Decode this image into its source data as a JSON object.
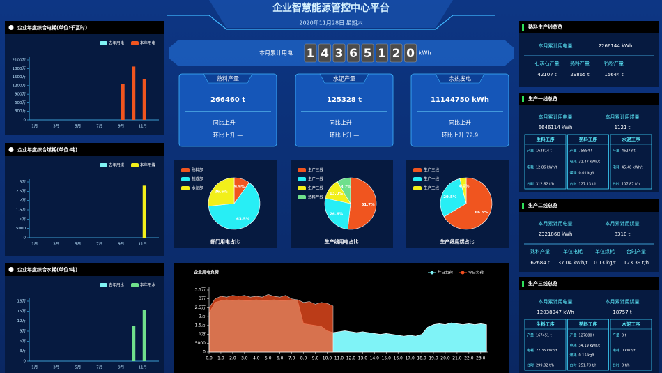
{
  "header": {
    "title": "企业智慧能源管控中心平台",
    "date": "2020年11月28日 星期六"
  },
  "meter": {
    "label": "本月累计用电",
    "digits": [
      "1",
      "4",
      "3",
      "6",
      "5",
      "1",
      "2",
      "0"
    ],
    "unit": "kWh"
  },
  "cards": [
    {
      "title": "熟料产量",
      "value": "266460 t",
      "yoy": "同比上升 —",
      "mom": "环比上升 —"
    },
    {
      "title": "水泥产量",
      "value": "125328 t",
      "yoy": "同比上升 —",
      "mom": "环比上升 —"
    },
    {
      "title": "余热发电",
      "value": "11144750 kWh",
      "yoy": "同比上升",
      "mom": "环比上升 72.9"
    }
  ],
  "chart_data": [
    {
      "type": "bar",
      "title": "企业年度综合电耗(单位:千瓦时)",
      "categories": [
        "1月",
        null,
        "3月",
        null,
        "5月",
        null,
        "7月",
        null,
        "9月",
        null,
        "11月",
        null
      ],
      "series": [
        {
          "name": "去年用电",
          "color": "#7ff3f5",
          "values": [
            null,
            null,
            null,
            null,
            null,
            null,
            null,
            null,
            null,
            null,
            null,
            null
          ]
        },
        {
          "name": "本年用电",
          "color": "#f0551f",
          "values": [
            null,
            null,
            null,
            null,
            null,
            null,
            null,
            null,
            1250,
            1870,
            1420,
            null
          ]
        }
      ],
      "ylim": [
        0,
        2100
      ],
      "yticks": [
        0,
        {
          "value": 300,
          "label": "300万"
        },
        {
          "value": 600,
          "label": "600万"
        },
        {
          "value": 900,
          "label": "900万"
        },
        {
          "value": 1200,
          "label": "1200万"
        },
        {
          "value": 1500,
          "label": "1500万"
        },
        {
          "value": 1800,
          "label": "1800万"
        },
        {
          "value": 2100,
          "label": "2100万"
        }
      ]
    },
    {
      "type": "bar",
      "title": "企业年度综合煤耗(单位:吨)",
      "categories": [
        "1月",
        null,
        "3月",
        null,
        "5月",
        null,
        "7月",
        null,
        "9月",
        null,
        "11月",
        null
      ],
      "series": [
        {
          "name": "去年用煤",
          "color": "#7ff3f5",
          "values": [
            null,
            null,
            null,
            null,
            null,
            null,
            null,
            null,
            null,
            null,
            null,
            null
          ]
        },
        {
          "name": "本年用煤",
          "color": "#f2ef1a",
          "values": [
            null,
            null,
            null,
            null,
            null,
            null,
            null,
            null,
            null,
            null,
            28000,
            null
          ]
        }
      ],
      "ylim": [
        0,
        30000
      ],
      "yticks": [
        0,
        5000,
        {
          "value": 10000,
          "label": "1万"
        },
        {
          "value": 15000,
          "label": "1.5万"
        },
        {
          "value": 20000,
          "label": "2万"
        },
        {
          "value": 25000,
          "label": "2.5万"
        },
        {
          "value": 30000,
          "label": "3万"
        }
      ]
    },
    {
      "type": "bar",
      "title": "企业年度综合水耗(单位:吨)",
      "categories": [
        "1月",
        null,
        "3月",
        null,
        "5月",
        null,
        "7月",
        null,
        "9月",
        null,
        "11月",
        null
      ],
      "series": [
        {
          "name": "去年用水",
          "color": "#7ff3f5",
          "values": [
            null,
            null,
            null,
            null,
            null,
            null,
            null,
            null,
            null,
            null,
            null,
            null
          ]
        },
        {
          "name": "本年用水",
          "color": "#6fe08c",
          "values": [
            null,
            null,
            null,
            null,
            null,
            null,
            null,
            null,
            null,
            10.5,
            15.3,
            null
          ]
        }
      ],
      "ylim": [
        0,
        18
      ],
      "yticks": [
        0,
        {
          "value": 3,
          "label": "3万"
        },
        {
          "value": 6,
          "label": "6万"
        },
        {
          "value": 9,
          "label": "9万"
        },
        {
          "value": 12,
          "label": "12万"
        },
        {
          "value": 15,
          "label": "15万"
        },
        {
          "value": 18,
          "label": "18万"
        }
      ]
    },
    {
      "type": "pie",
      "title": "部门用电占比",
      "categories": [
        "熟料部",
        "制成部",
        "水泥部"
      ],
      "values": [
        9.9,
        63.5,
        26.6
      ],
      "value_labels": [
        "9.9%",
        "63.5%",
        "26.6%"
      ],
      "colors": [
        "#f0551f",
        "#28eef5",
        "#f2ef1a"
      ]
    },
    {
      "type": "pie",
      "title": "生产线用电占比",
      "categories": [
        "生产三线",
        "生产一线",
        "生产二线",
        "熟料产线"
      ],
      "values": [
        51.7,
        26.6,
        13.0,
        8.7
      ],
      "value_labels": [
        "51.7%",
        "26.6%",
        "13.0%",
        "8.7%"
      ],
      "colors": [
        "#f0551f",
        "#28eef5",
        "#f2ef1a",
        "#6fe08c"
      ]
    },
    {
      "type": "pie",
      "title": "生产线用煤占比",
      "categories": [
        "生产三线",
        "生产一线",
        "生产二线"
      ],
      "values": [
        66.5,
        29.5,
        4.0
      ],
      "value_labels": [
        "66.5%",
        "29.5%",
        "4.0%"
      ],
      "colors": [
        "#f0551f",
        "#28eef5",
        "#f2ef1a"
      ]
    },
    {
      "type": "area",
      "title": "企业用电负荷",
      "x": [
        0,
        0.5,
        1,
        1.5,
        2,
        2.5,
        3,
        3.5,
        4,
        4.5,
        5,
        5.5,
        6,
        6.5,
        7,
        7.5,
        8,
        8.5,
        9,
        9.5,
        10,
        10.5,
        11,
        11.5,
        12,
        12.5,
        13,
        13.5,
        14,
        14.5,
        15,
        15.5,
        16,
        16.5,
        17,
        17.5,
        18,
        18.5,
        19,
        19.5,
        20,
        20.5,
        21,
        21.5,
        22,
        22.5,
        23,
        23.5
      ],
      "series": [
        {
          "name": "昨日负荷",
          "color": "#7ff3f7",
          "values": [
            22000,
            28000,
            29000,
            29500,
            29000,
            29500,
            29000,
            29000,
            29500,
            29000,
            29000,
            29500,
            29000,
            29000,
            29500,
            29000,
            16000,
            15500,
            15000,
            14500,
            12000,
            11000,
            11500,
            12000,
            11500,
            11000,
            11500,
            11000,
            10500,
            10000,
            10500,
            10000,
            9500,
            9000,
            9500,
            9000,
            10000,
            14000,
            15500,
            16000,
            15500,
            16500,
            16000,
            15500,
            16000,
            15500,
            16000,
            15500
          ]
        },
        {
          "name": "今日负荷",
          "color": "#f04e1f",
          "values": [
            25000,
            30000,
            31500,
            31000,
            32000,
            31500,
            32000,
            31000,
            31500,
            31000,
            32500,
            31500,
            31000,
            32000,
            30000,
            29500,
            28000,
            28500,
            27000,
            28000,
            27500,
            26000,
            null,
            null,
            null,
            null,
            null,
            null,
            null,
            null,
            null,
            null,
            null,
            null,
            null,
            null,
            null,
            null,
            null,
            null,
            null,
            null,
            null,
            null,
            null,
            null,
            null,
            null
          ]
        }
      ],
      "xlim": [
        0,
        23.6
      ],
      "ylim": [
        0,
        35000
      ],
      "xticks": [
        {
          "value": 0,
          "label": "0.0"
        },
        {
          "value": 1,
          "label": "1.0"
        },
        {
          "value": 2,
          "label": "2.0"
        },
        {
          "value": 3,
          "label": "3.0"
        },
        {
          "value": 4,
          "label": "4.0"
        },
        {
          "value": 5,
          "label": "5.0"
        },
        {
          "value": 6,
          "label": "6.0"
        },
        {
          "value": 7,
          "label": "7.0"
        },
        {
          "value": 8,
          "label": "8.0"
        },
        {
          "value": 9,
          "label": "9.0"
        },
        {
          "value": 10,
          "label": "10.0"
        },
        {
          "value": 11,
          "label": "11.0"
        },
        {
          "value": 12,
          "label": "12.0"
        },
        {
          "value": 13,
          "label": "13.0"
        },
        {
          "value": 14,
          "label": "14.0"
        },
        {
          "value": 15,
          "label": "15.0"
        },
        {
          "value": 16,
          "label": "16.0"
        },
        {
          "value": 17,
          "label": "17.0"
        },
        {
          "value": 18,
          "label": "18.0"
        },
        {
          "value": 19,
          "label": "19.0"
        },
        {
          "value": 20,
          "label": "20.0"
        },
        {
          "value": 21,
          "label": "21.0"
        },
        {
          "value": 22,
          "label": "22.0"
        },
        {
          "value": 23,
          "label": "23.0"
        }
      ],
      "yticks": [
        0,
        5000,
        {
          "value": 10000,
          "label": "1万"
        },
        {
          "value": 15000,
          "label": "1.5万"
        },
        {
          "value": 20000,
          "label": "2万"
        },
        {
          "value": 25000,
          "label": "2.5万"
        },
        {
          "value": 30000,
          "label": "3万"
        },
        {
          "value": 35000,
          "label": "3.5万"
        }
      ]
    }
  ],
  "overview": [
    {
      "title": "熟料生产线总览",
      "stats": [
        {
          "label": "本月累计用电量",
          "value": "2266144 kWh"
        }
      ],
      "items": [
        {
          "label": "石灰石产量",
          "value": "42107 t"
        },
        {
          "label": "熟料产量",
          "value": "29865 t"
        },
        {
          "label": "钙粉产量",
          "value": "15644 t"
        }
      ]
    },
    {
      "title": "生产一线总览",
      "stats": [
        {
          "label": "本月累计用电量",
          "value": "6646114 kWh"
        },
        {
          "label": "本月累计用煤量",
          "value": "1121 t"
        }
      ],
      "processes": [
        {
          "name": "生料工序",
          "rows": [
            [
              "产量",
              "163814 t"
            ],
            [
              "电耗",
              "12.86 kWh/t"
            ],
            [
              "台时",
              "312.62 t/h"
            ]
          ]
        },
        {
          "name": "熟料工序",
          "rows": [
            [
              "产量",
              "75894 t"
            ],
            [
              "电耗",
              "31.47 kWh/t"
            ],
            [
              "煤耗",
              "0.01 kg/t"
            ],
            [
              "台时",
              "127.13 t/h"
            ]
          ]
        },
        {
          "name": "水泥工序",
          "rows": [
            [
              "产量",
              "46278 t"
            ],
            [
              "电耗",
              "45.48 kWh/t"
            ],
            [
              "台时",
              "107.87 t/h"
            ]
          ]
        }
      ]
    },
    {
      "title": "生产二线总览",
      "stats": [
        {
          "label": "本月累计用电量",
          "value": "2321860 kWh"
        },
        {
          "label": "本月累计用煤量",
          "value": "8310 t"
        }
      ],
      "items": [
        {
          "label": "熟料产量",
          "value": "62684 t"
        },
        {
          "label": "单位电耗",
          "value": "37.04 kWh/t"
        },
        {
          "label": "单位煤耗",
          "value": "0.13 kg/t"
        },
        {
          "label": "台时产量",
          "value": "123.39 t/h"
        }
      ]
    },
    {
      "title": "生产三线总览",
      "stats": [
        {
          "label": "本月累计用电量",
          "value": "12038947 kWh"
        },
        {
          "label": "本月累计用煤量",
          "value": "18757 t"
        }
      ],
      "processes": [
        {
          "name": "生料工序",
          "rows": [
            [
              "产量",
              "167451 t"
            ],
            [
              "电耗",
              "22.35 kWh/t"
            ],
            [
              "台时",
              "299.02 t/h"
            ]
          ]
        },
        {
          "name": "熟料工序",
          "rows": [
            [
              "产量",
              "127880 t"
            ],
            [
              "电耗",
              "34.19 kWh/t"
            ],
            [
              "煤耗",
              "0.15 kg/t"
            ],
            [
              "台时",
              "251.73 t/h"
            ]
          ]
        },
        {
          "name": "水泥工序",
          "rows": [
            [
              "产量",
              "0 t"
            ],
            [
              "电耗",
              "0 kWh/t"
            ],
            [
              "台时",
              "0 t/h"
            ]
          ]
        }
      ]
    }
  ]
}
